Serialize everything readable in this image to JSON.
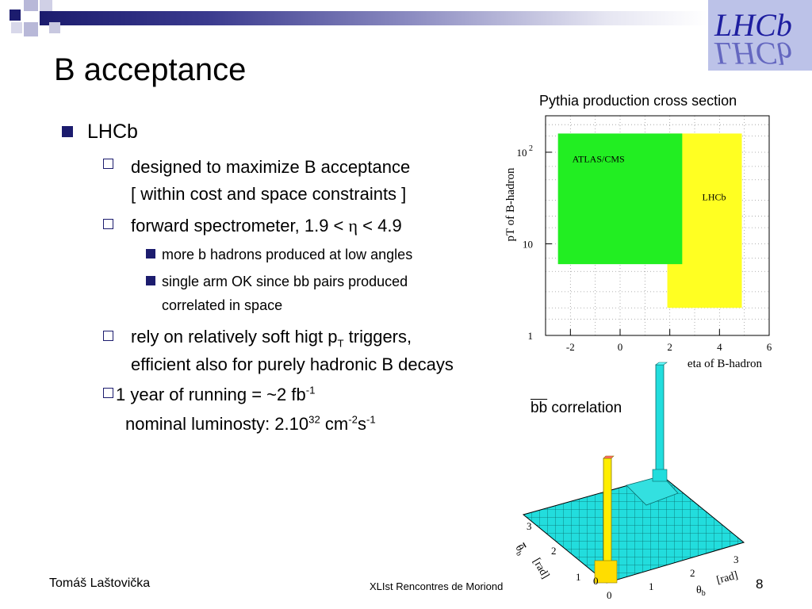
{
  "title": "B acceptance",
  "logo_text": "LHCb",
  "bullets": {
    "l1_lhcb": "LHCb",
    "l2_designed": "designed to maximize B acceptance",
    "l2_designed_cont": "[ within cost and space constraints ]",
    "l2_forward_pre": "forward spectrometer, 1.9 < ",
    "l2_forward_eta": "η",
    "l2_forward_post": " < 4.9",
    "l3_more": "more b hadrons produced at low angles",
    "l3_single": "single arm OK since bb pairs produced",
    "l3_single_cont": "correlated in space",
    "l2_rely_pre": "rely on relatively soft higt p",
    "l2_rely_sub": "T",
    "l2_rely_post": " triggers,",
    "l2_rely_cont": "efficient also for purely hadronic B decays",
    "l2_year_pre": "1 year of running  = ~2 fb",
    "l2_year_sup": "-1",
    "lumi_pre": "nominal luminosty: 2.10",
    "lumi_exp": "32",
    "lumi_unit": " cm",
    "lumi_unit_sup1": "-2",
    "lumi_s": "s",
    "lumi_unit_sup2": "-1"
  },
  "chart_data": {
    "type": "region",
    "title": "Pythia production cross section",
    "xlabel": "eta of B-hadron",
    "ylabel": "pT of B-hadron",
    "x_ticks": [
      "-2",
      "0",
      "2",
      "4",
      "6"
    ],
    "y_ticks": [
      "1",
      "10",
      "10 2"
    ],
    "xlim": [
      -3,
      6
    ],
    "y_scale": "log",
    "ylim": [
      1,
      250
    ],
    "regions": [
      {
        "name": "ATLAS/CMS",
        "color": "#22ee22",
        "eta": [
          -2.5,
          2.5
        ],
        "pt": [
          6,
          160
        ]
      },
      {
        "name": "LHCb",
        "color": "#ffff22",
        "eta": [
          1.9,
          4.9
        ],
        "pt": [
          2,
          160
        ]
      }
    ]
  },
  "correlation": {
    "label_b": "bb",
    "label_rest": " correlation",
    "theta_b_bar_label": "θ",
    "theta_b_bar_unit": "[rad]",
    "theta_b_label": "θ",
    "theta_b_unit": "[rad]",
    "axis_ticks_right": [
      "0",
      "1",
      "2",
      "3"
    ],
    "axis_ticks_left": [
      "0",
      "1",
      "2",
      "3"
    ],
    "yellow": "#ffee00",
    "cyan": "#22dddd"
  },
  "footer": {
    "author": "Tomáš Laštovička",
    "conference": "XLIst Rencontres de Moriond",
    "page": "8"
  }
}
